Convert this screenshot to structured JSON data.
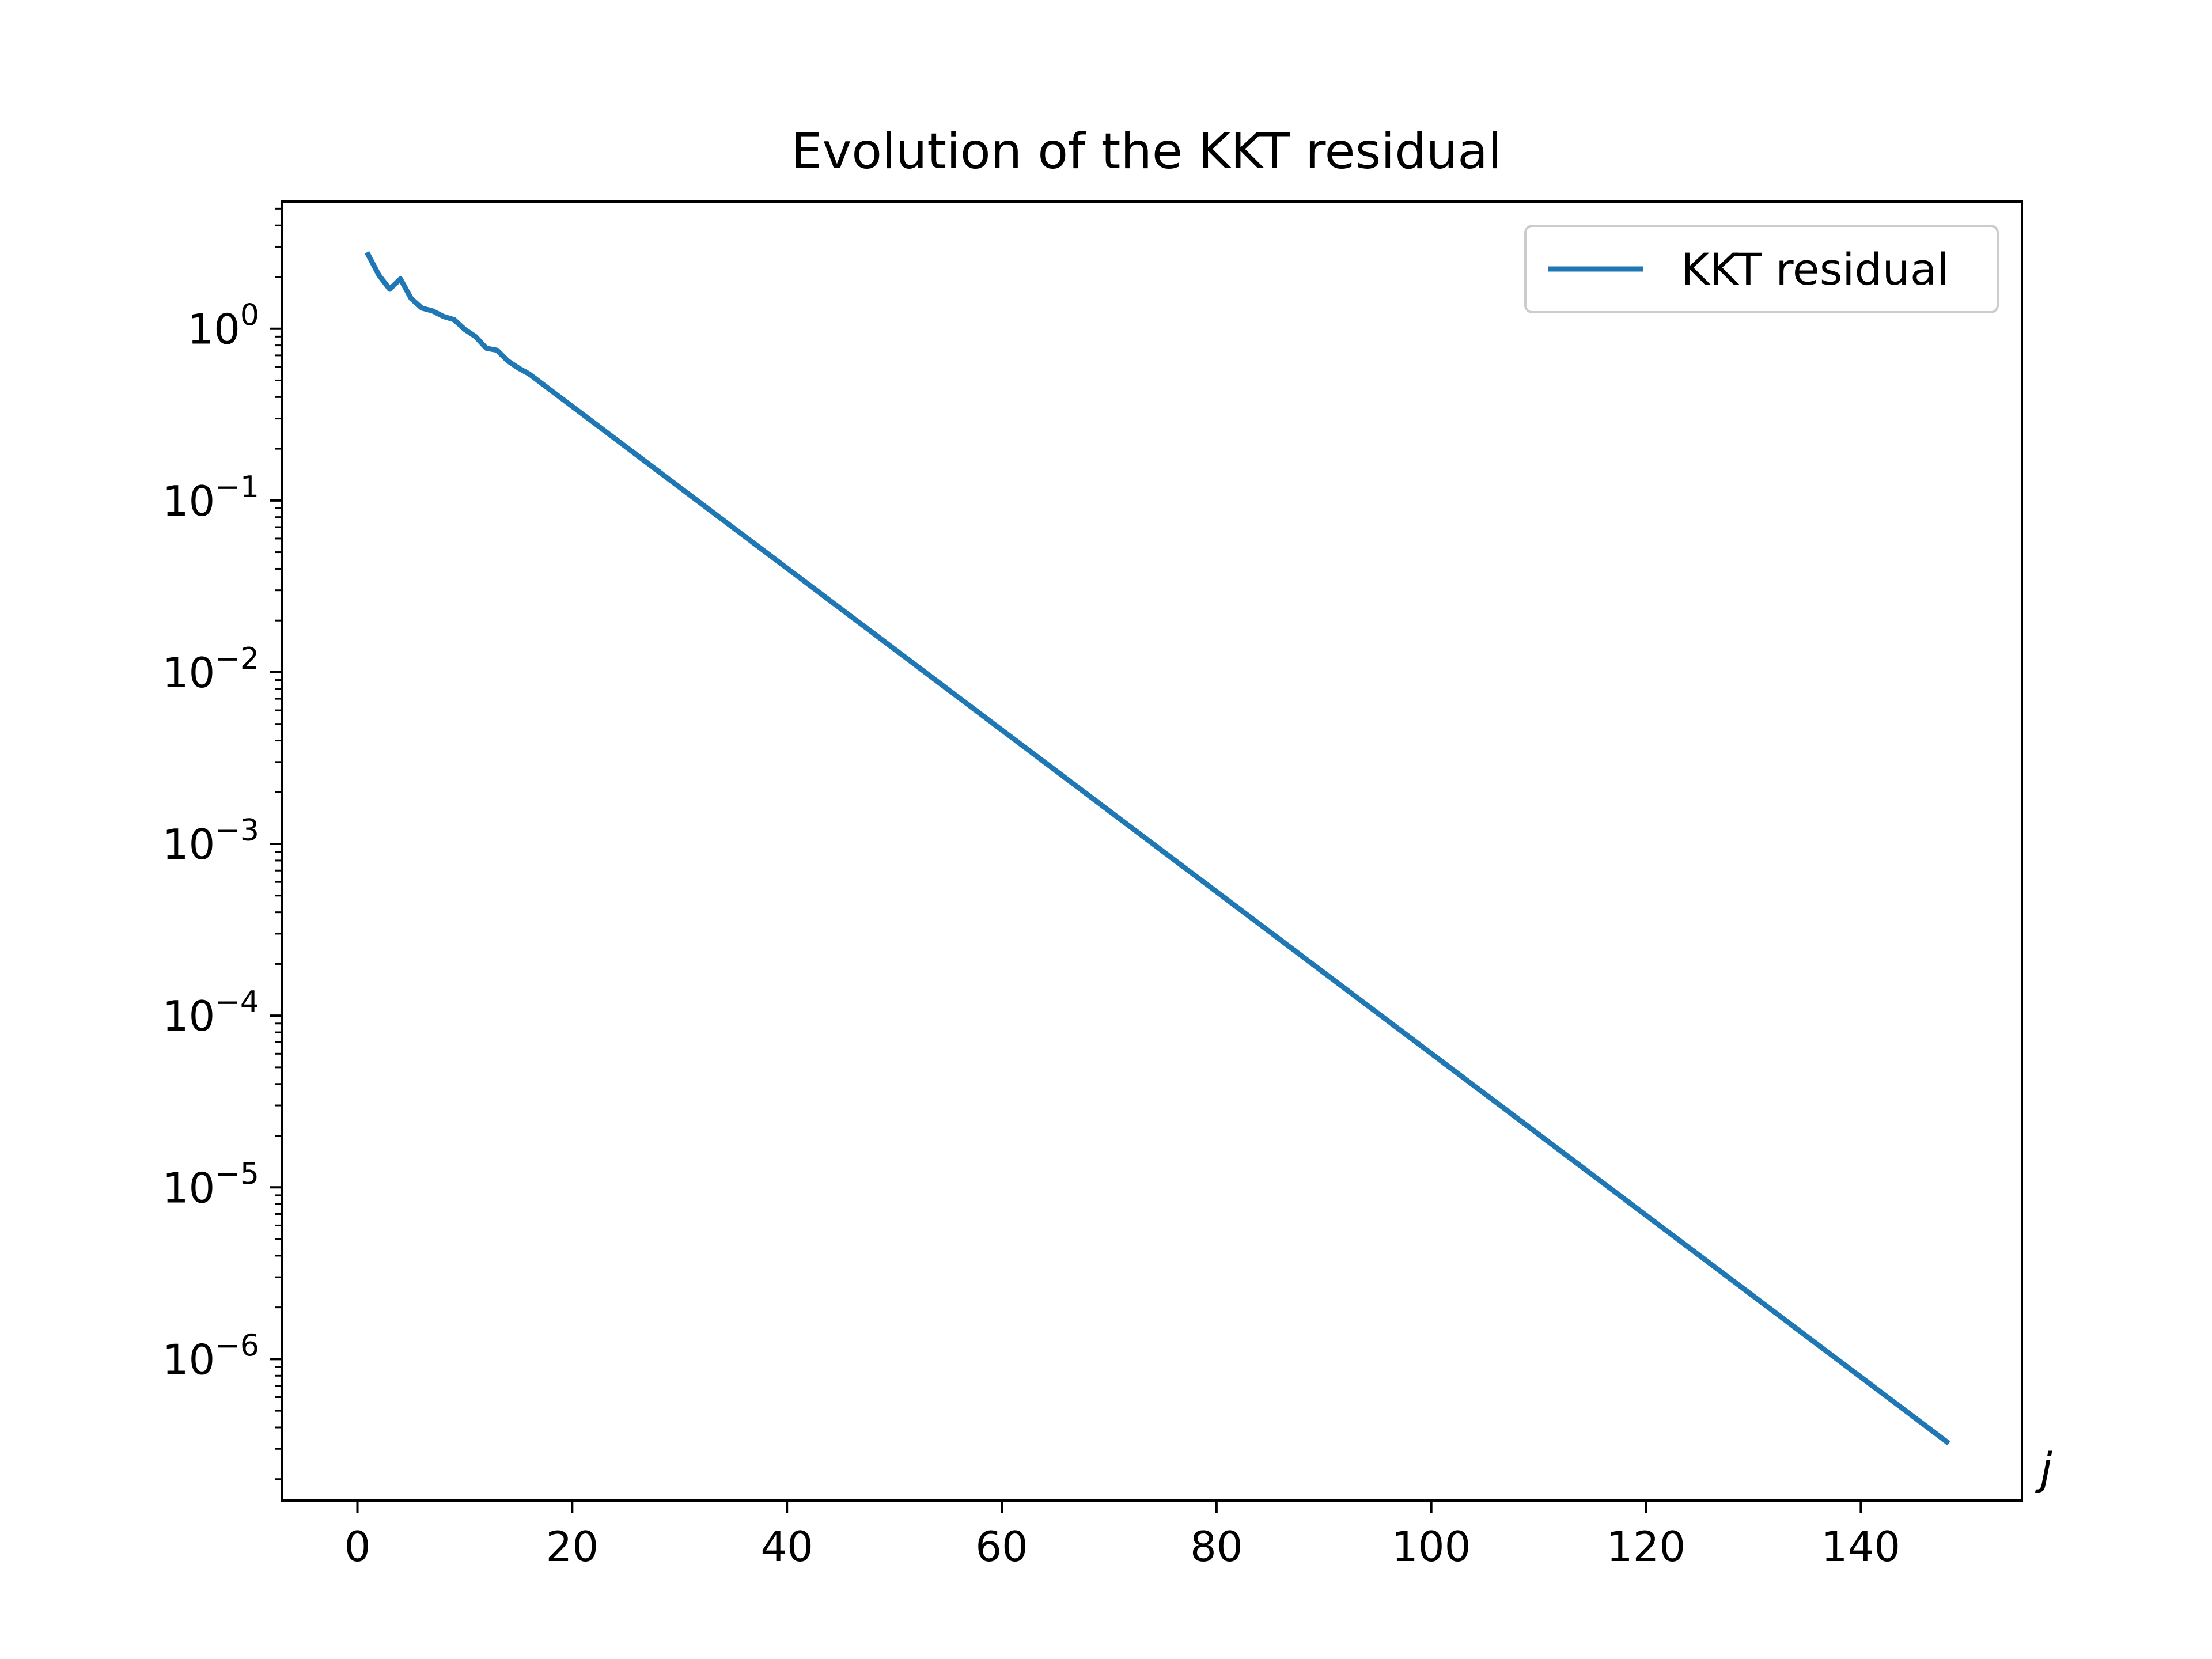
{
  "chart_data": {
    "type": "line",
    "title": "Evolution of the KKT residual",
    "xlabel": "j",
    "ylabel": "",
    "yscale": "log",
    "xlim": [
      -7,
      155
    ],
    "ylim": [
      1.5e-07,
      5.5
    ],
    "xticks": [
      0,
      20,
      40,
      60,
      80,
      100,
      120,
      140
    ],
    "yticks": [
      {
        "base": "10",
        "exp": "0",
        "value": 1
      },
      {
        "base": "10",
        "exp": "−1",
        "value": 0.1
      },
      {
        "base": "10",
        "exp": "−2",
        "value": 0.01
      },
      {
        "base": "10",
        "exp": "−3",
        "value": 0.001
      },
      {
        "base": "10",
        "exp": "−4",
        "value": 0.0001
      },
      {
        "base": "10",
        "exp": "−5",
        "value": 1e-05
      },
      {
        "base": "10",
        "exp": "−6",
        "value": 1e-06
      }
    ],
    "grid": false,
    "legend_position": "upper right",
    "series": [
      {
        "name": "KKT residual",
        "color": "#1f77b4",
        "x": [
          1,
          2,
          3,
          4,
          5,
          6,
          7,
          8,
          9,
          10,
          11,
          12,
          13,
          14,
          15,
          16,
          148
        ],
        "y": [
          2.7,
          2.05,
          1.7,
          1.95,
          1.5,
          1.32,
          1.27,
          1.18,
          1.13,
          0.99,
          0.9,
          0.77,
          0.75,
          0.65,
          0.59,
          0.545,
          3.3e-07
        ]
      }
    ]
  }
}
